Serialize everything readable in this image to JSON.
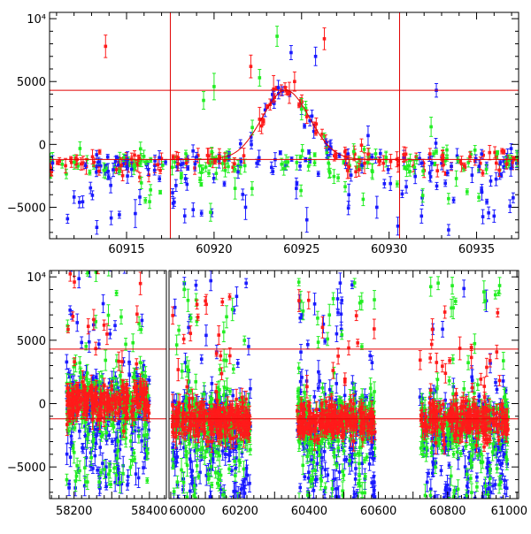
{
  "colors": {
    "red": "#ff1a1a",
    "green": "#22ee22",
    "blue": "#1a1aff",
    "axis": "#000000",
    "line": "#e00000"
  },
  "chart_data": [
    {
      "type": "scatter",
      "title": "",
      "xlabel": "",
      "ylabel": "",
      "xlim": [
        60910.6,
        60937.4
      ],
      "ylim": [
        -7500,
        10500
      ],
      "x_ticks": [
        60915,
        60920,
        60925,
        60930,
        60935
      ],
      "x_tick_labels": [
        "60915",
        "60920",
        "60925",
        "60930",
        "60935"
      ],
      "y_ticks": [
        -5000,
        0,
        5000,
        10000
      ],
      "y_tick_labels": [
        "−5000",
        "0",
        "5000",
        "10⁴"
      ],
      "hlines": [
        4300,
        -1200
      ],
      "vlines": [
        60917.5,
        60930.6
      ],
      "model_curve": {
        "t0": 60924.1,
        "width": 1.35,
        "base": -1200,
        "peak": 4300,
        "x_range": [
          60917.5,
          60930.6
        ]
      },
      "series": [
        {
          "name": "red",
          "color": "#ff1a1a",
          "points": [
            [
              60913.8,
              7800
            ],
            [
              60922.1,
              6200
            ],
            [
              60923.4,
              4400
            ],
            [
              60924.3,
              4100
            ],
            [
              60924.6,
              5000
            ],
            [
              60926.3,
              8400
            ],
            [
              60927.7,
              -1800
            ],
            [
              60928.6,
              -1500
            ],
            [
              60921.7,
              -900
            ],
            [
              60925.3,
              2200
            ],
            [
              60922.6,
              2000
            ]
          ]
        },
        {
          "name": "green",
          "color": "#22ee22",
          "points": [
            [
              60919.4,
              3500
            ],
            [
              60920.0,
              4600
            ],
            [
              60922.6,
              5300
            ],
            [
              60923.6,
              8600
            ],
            [
              60925.0,
              2800
            ],
            [
              60921.2,
              -3500
            ],
            [
              60919.8,
              -5400
            ],
            [
              60932.4,
              1400
            ]
          ]
        },
        {
          "name": "blue",
          "color": "#1a1aff",
          "points": [
            [
              60924.4,
              7300
            ],
            [
              60925.8,
              7000
            ],
            [
              60932.7,
              4300
            ],
            [
              60924.7,
              -3500
            ],
            [
              60925.3,
              -6000
            ],
            [
              60921.8,
              -5000
            ],
            [
              60927.7,
              -4000
            ],
            [
              60929.3,
              -5000
            ],
            [
              60933.4,
              -6800
            ],
            [
              60936.0,
              -5700
            ],
            [
              60915.5,
              -5500
            ],
            [
              60913.3,
              -6600
            ],
            [
              60930.5,
              -6500
            ],
            [
              60928.8,
              700
            ],
            [
              60935.3,
              -3800
            ]
          ]
        }
      ],
      "dense_segments": [
        {
          "x": [
            60910.6,
            60917.3
          ],
          "center": -1600,
          "spread": 500,
          "dips": -5200
        },
        {
          "x": [
            60917.6,
            60937.4
          ],
          "center": -1400,
          "spread": 500,
          "dips": -5200
        }
      ]
    },
    {
      "type": "scatter",
      "title": "",
      "xlabel": "",
      "ylabel": "",
      "broken_axis": true,
      "segments": [
        {
          "xlim": [
            58135,
            58445
          ],
          "ticks": [
            58200,
            58400
          ],
          "tick_labels": [
            "58200",
            "58400"
          ]
        },
        {
          "xlim": [
            59995,
            61005
          ],
          "ticks": [
            60000,
            60200,
            60400,
            60600,
            60800,
            61000
          ],
          "tick_labels": [
            "60000",
            "60200",
            "60400",
            "60600",
            "60800",
            "61000"
          ]
        }
      ],
      "ylim": [
        -7500,
        10500
      ],
      "y_ticks": [
        -5000,
        0,
        5000,
        10000
      ],
      "y_tick_labels": [
        "−5000",
        "0",
        "5000",
        "10⁴"
      ],
      "hlines": [
        4300,
        -1200
      ],
      "observing_seasons": [
        {
          "x": [
            58180,
            58400
          ],
          "center": 200,
          "spread": 1300
        },
        {
          "x": [
            60005,
            60230
          ],
          "center": -1300,
          "spread": 1300
        },
        {
          "x": [
            60365,
            60590
          ],
          "center": -1400,
          "spread": 1300
        },
        {
          "x": [
            60720,
            60975
          ],
          "center": -1300,
          "spread": 1300
        }
      ],
      "series": [
        {
          "name": "red",
          "color": "#ff1a1a"
        },
        {
          "name": "green",
          "color": "#22ee22"
        },
        {
          "name": "blue",
          "color": "#1a1aff"
        }
      ]
    }
  ]
}
